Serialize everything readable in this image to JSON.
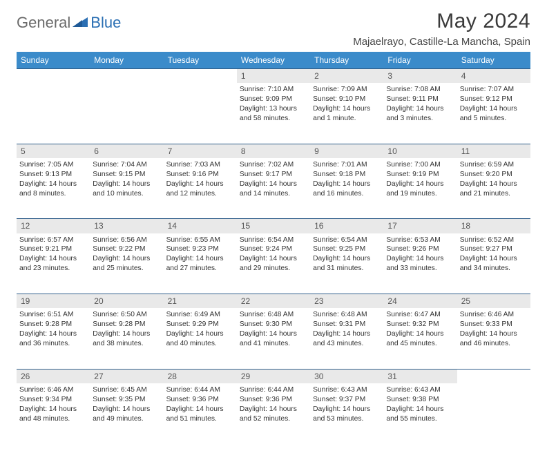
{
  "logo": {
    "part1": "General",
    "part2": "Blue"
  },
  "title": "May 2024",
  "location": "Majaelrayo, Castille-La Mancha, Spain",
  "colors": {
    "header_bg": "#3b8bca",
    "header_text": "#ffffff",
    "daynum_bg": "#e9e9e9",
    "border": "#2f5d8a",
    "logo_gray": "#6a6a6a",
    "logo_blue": "#2b6fb3"
  },
  "weekdays": [
    "Sunday",
    "Monday",
    "Tuesday",
    "Wednesday",
    "Thursday",
    "Friday",
    "Saturday"
  ],
  "weeks": [
    {
      "nums": [
        "",
        "",
        "",
        "1",
        "2",
        "3",
        "4"
      ],
      "cells": [
        null,
        null,
        null,
        {
          "sr": "Sunrise: 7:10 AM",
          "ss": "Sunset: 9:09 PM",
          "dl": "Daylight: 13 hours and 58 minutes."
        },
        {
          "sr": "Sunrise: 7:09 AM",
          "ss": "Sunset: 9:10 PM",
          "dl": "Daylight: 14 hours and 1 minute."
        },
        {
          "sr": "Sunrise: 7:08 AM",
          "ss": "Sunset: 9:11 PM",
          "dl": "Daylight: 14 hours and 3 minutes."
        },
        {
          "sr": "Sunrise: 7:07 AM",
          "ss": "Sunset: 9:12 PM",
          "dl": "Daylight: 14 hours and 5 minutes."
        }
      ]
    },
    {
      "nums": [
        "5",
        "6",
        "7",
        "8",
        "9",
        "10",
        "11"
      ],
      "cells": [
        {
          "sr": "Sunrise: 7:05 AM",
          "ss": "Sunset: 9:13 PM",
          "dl": "Daylight: 14 hours and 8 minutes."
        },
        {
          "sr": "Sunrise: 7:04 AM",
          "ss": "Sunset: 9:15 PM",
          "dl": "Daylight: 14 hours and 10 minutes."
        },
        {
          "sr": "Sunrise: 7:03 AM",
          "ss": "Sunset: 9:16 PM",
          "dl": "Daylight: 14 hours and 12 minutes."
        },
        {
          "sr": "Sunrise: 7:02 AM",
          "ss": "Sunset: 9:17 PM",
          "dl": "Daylight: 14 hours and 14 minutes."
        },
        {
          "sr": "Sunrise: 7:01 AM",
          "ss": "Sunset: 9:18 PM",
          "dl": "Daylight: 14 hours and 16 minutes."
        },
        {
          "sr": "Sunrise: 7:00 AM",
          "ss": "Sunset: 9:19 PM",
          "dl": "Daylight: 14 hours and 19 minutes."
        },
        {
          "sr": "Sunrise: 6:59 AM",
          "ss": "Sunset: 9:20 PM",
          "dl": "Daylight: 14 hours and 21 minutes."
        }
      ]
    },
    {
      "nums": [
        "12",
        "13",
        "14",
        "15",
        "16",
        "17",
        "18"
      ],
      "cells": [
        {
          "sr": "Sunrise: 6:57 AM",
          "ss": "Sunset: 9:21 PM",
          "dl": "Daylight: 14 hours and 23 minutes."
        },
        {
          "sr": "Sunrise: 6:56 AM",
          "ss": "Sunset: 9:22 PM",
          "dl": "Daylight: 14 hours and 25 minutes."
        },
        {
          "sr": "Sunrise: 6:55 AM",
          "ss": "Sunset: 9:23 PM",
          "dl": "Daylight: 14 hours and 27 minutes."
        },
        {
          "sr": "Sunrise: 6:54 AM",
          "ss": "Sunset: 9:24 PM",
          "dl": "Daylight: 14 hours and 29 minutes."
        },
        {
          "sr": "Sunrise: 6:54 AM",
          "ss": "Sunset: 9:25 PM",
          "dl": "Daylight: 14 hours and 31 minutes."
        },
        {
          "sr": "Sunrise: 6:53 AM",
          "ss": "Sunset: 9:26 PM",
          "dl": "Daylight: 14 hours and 33 minutes."
        },
        {
          "sr": "Sunrise: 6:52 AM",
          "ss": "Sunset: 9:27 PM",
          "dl": "Daylight: 14 hours and 34 minutes."
        }
      ]
    },
    {
      "nums": [
        "19",
        "20",
        "21",
        "22",
        "23",
        "24",
        "25"
      ],
      "cells": [
        {
          "sr": "Sunrise: 6:51 AM",
          "ss": "Sunset: 9:28 PM",
          "dl": "Daylight: 14 hours and 36 minutes."
        },
        {
          "sr": "Sunrise: 6:50 AM",
          "ss": "Sunset: 9:28 PM",
          "dl": "Daylight: 14 hours and 38 minutes."
        },
        {
          "sr": "Sunrise: 6:49 AM",
          "ss": "Sunset: 9:29 PM",
          "dl": "Daylight: 14 hours and 40 minutes."
        },
        {
          "sr": "Sunrise: 6:48 AM",
          "ss": "Sunset: 9:30 PM",
          "dl": "Daylight: 14 hours and 41 minutes."
        },
        {
          "sr": "Sunrise: 6:48 AM",
          "ss": "Sunset: 9:31 PM",
          "dl": "Daylight: 14 hours and 43 minutes."
        },
        {
          "sr": "Sunrise: 6:47 AM",
          "ss": "Sunset: 9:32 PM",
          "dl": "Daylight: 14 hours and 45 minutes."
        },
        {
          "sr": "Sunrise: 6:46 AM",
          "ss": "Sunset: 9:33 PM",
          "dl": "Daylight: 14 hours and 46 minutes."
        }
      ]
    },
    {
      "nums": [
        "26",
        "27",
        "28",
        "29",
        "30",
        "31",
        ""
      ],
      "cells": [
        {
          "sr": "Sunrise: 6:46 AM",
          "ss": "Sunset: 9:34 PM",
          "dl": "Daylight: 14 hours and 48 minutes."
        },
        {
          "sr": "Sunrise: 6:45 AM",
          "ss": "Sunset: 9:35 PM",
          "dl": "Daylight: 14 hours and 49 minutes."
        },
        {
          "sr": "Sunrise: 6:44 AM",
          "ss": "Sunset: 9:36 PM",
          "dl": "Daylight: 14 hours and 51 minutes."
        },
        {
          "sr": "Sunrise: 6:44 AM",
          "ss": "Sunset: 9:36 PM",
          "dl": "Daylight: 14 hours and 52 minutes."
        },
        {
          "sr": "Sunrise: 6:43 AM",
          "ss": "Sunset: 9:37 PM",
          "dl": "Daylight: 14 hours and 53 minutes."
        },
        {
          "sr": "Sunrise: 6:43 AM",
          "ss": "Sunset: 9:38 PM",
          "dl": "Daylight: 14 hours and 55 minutes."
        },
        null
      ]
    }
  ]
}
